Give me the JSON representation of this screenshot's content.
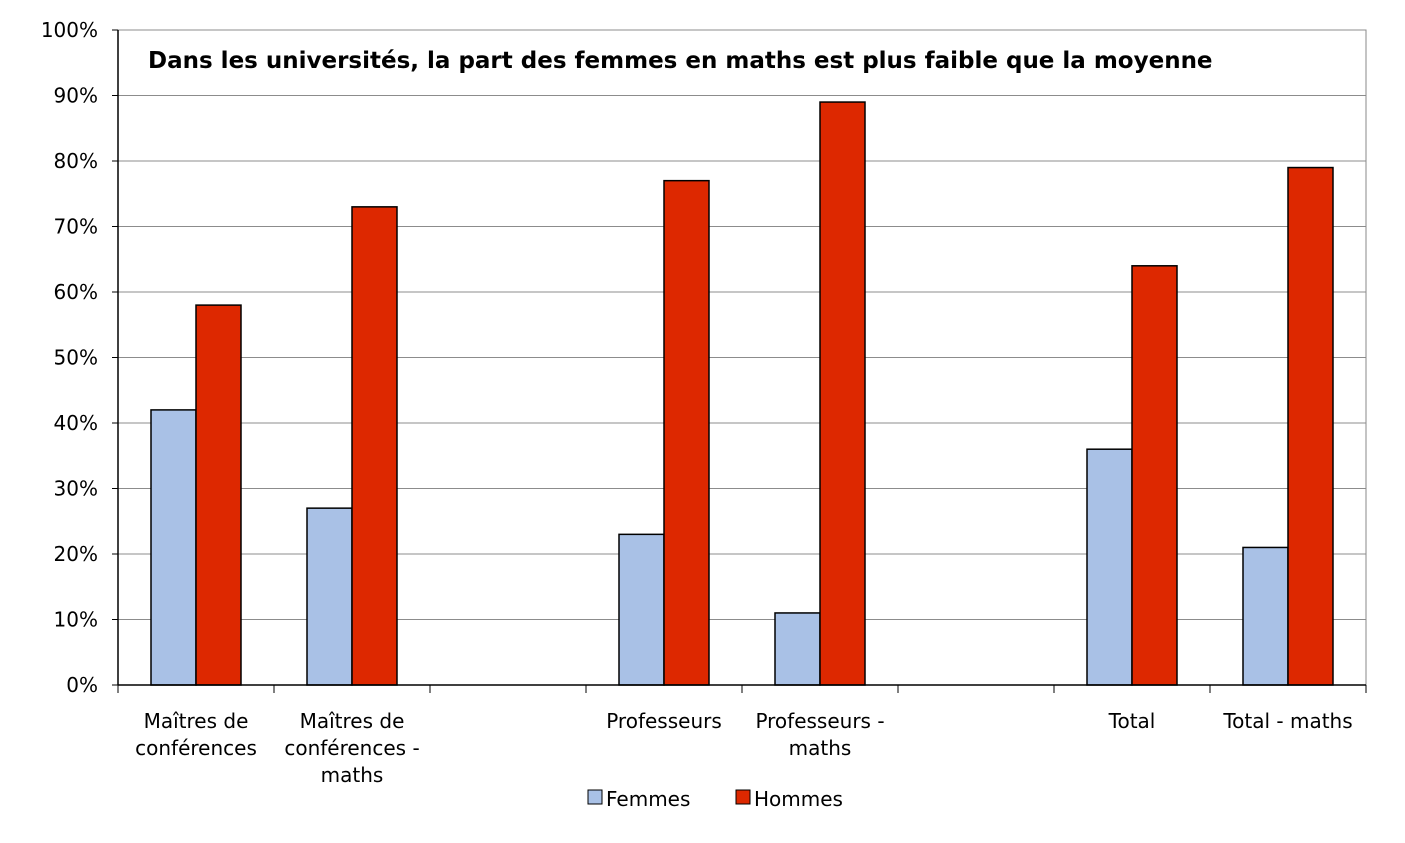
{
  "chart_data": {
    "type": "bar",
    "title": "Dans les universités, la part des femmes en maths est plus faible que la moyenne",
    "xlabel": "",
    "ylabel": "",
    "ylim": [
      0,
      100
    ],
    "y_ticks": [
      "0%",
      "10%",
      "20%",
      "30%",
      "40%",
      "50%",
      "60%",
      "70%",
      "80%",
      "90%",
      "100%"
    ],
    "categories": [
      [
        "Maîtres de",
        "conférences"
      ],
      [
        "Maîtres de",
        "conférences -",
        "maths"
      ],
      [],
      [
        "Professeurs"
      ],
      [
        "Professeurs -",
        "maths"
      ],
      [],
      [
        "Total"
      ],
      [
        "Total - maths"
      ]
    ],
    "series": [
      {
        "name": "Femmes",
        "color": "#a9c1e6",
        "values": [
          42,
          27,
          null,
          23,
          11,
          null,
          36,
          21
        ]
      },
      {
        "name": "Hommes",
        "color": "#dd2800",
        "values": [
          58,
          73,
          null,
          77,
          89,
          null,
          64,
          79
        ]
      }
    ],
    "grid": true,
    "legend_position": "bottom"
  }
}
